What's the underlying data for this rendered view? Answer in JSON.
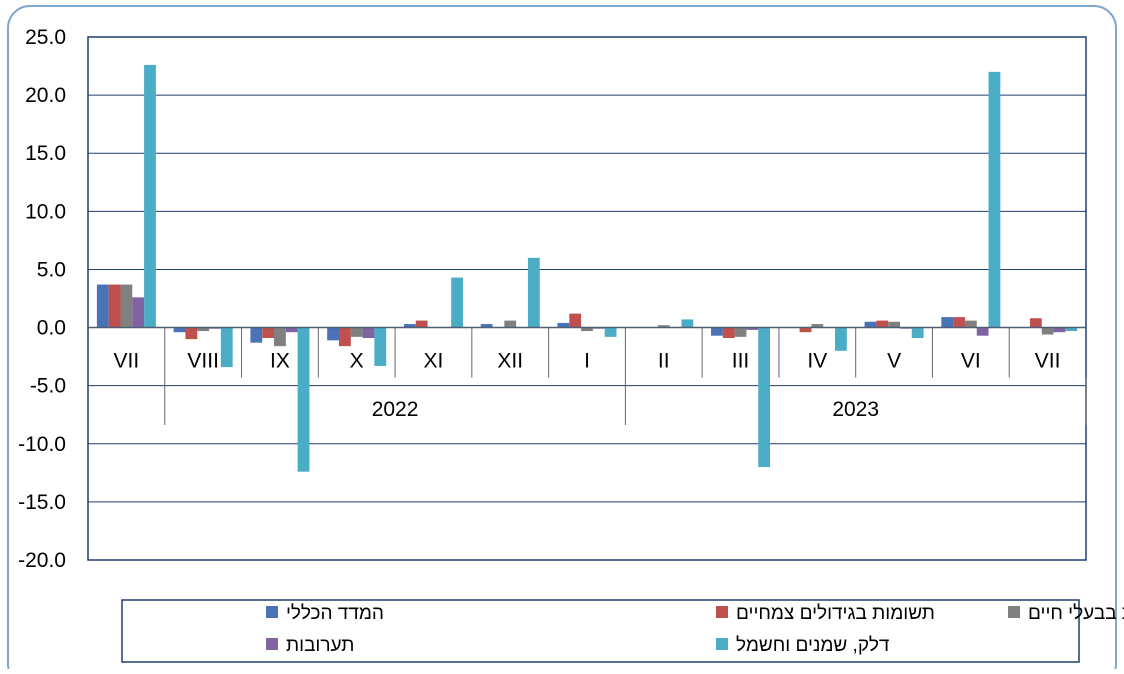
{
  "chart_data": {
    "type": "bar",
    "title": "",
    "xlabel": "",
    "ylabel": "",
    "ylim": [
      -20,
      25
    ],
    "yticks": [
      25,
      20,
      15,
      10,
      5,
      0,
      -5,
      -10,
      -15,
      -20
    ],
    "ytick_labels": [
      "25.0",
      "20.0",
      "15.0",
      "10.0",
      "5.0",
      "0.0",
      "-5.0",
      "-10.0",
      "-15.0",
      "-20.0"
    ],
    "categories": [
      "VII",
      "VIII",
      "IX",
      "X",
      "XI",
      "XII",
      "I",
      "II",
      "III",
      "IV",
      "V",
      "VI",
      "VII"
    ],
    "year_groups": [
      {
        "label": "2022",
        "start": 1,
        "end": 6
      },
      {
        "label": "2023",
        "start": 7,
        "end": 12
      }
    ],
    "grid": true,
    "legend_placement": "bottom",
    "series": [
      {
        "name": "המדד הכללי",
        "color": "#4a72b8",
        "values": [
          3.7,
          -0.4,
          -1.3,
          -1.1,
          0.3,
          0.3,
          0.4,
          0.0,
          -0.7,
          0.0,
          0.5,
          0.9,
          0.0
        ]
      },
      {
        "name": "תשומות בגידולים צמחיים",
        "color": "#c0504d",
        "values": [
          3.7,
          -1.0,
          -0.9,
          -1.6,
          0.6,
          0.0,
          1.2,
          0.0,
          -0.9,
          -0.4,
          0.6,
          0.9,
          0.8
        ]
      },
      {
        "name": "תשומות בבעלי חיים",
        "color": "#808080",
        "values": [
          3.7,
          -0.3,
          -1.6,
          -0.8,
          0.0,
          0.6,
          -0.3,
          0.2,
          -0.8,
          0.3,
          0.5,
          0.6,
          -0.6
        ]
      },
      {
        "name": "תערובות",
        "color": "#8064a2",
        "values": [
          2.6,
          -0.1,
          -0.4,
          -0.9,
          0.0,
          0.0,
          -0.1,
          0.0,
          -0.2,
          0.0,
          -0.1,
          -0.7,
          -0.4
        ]
      },
      {
        "name": "דלק, שמנים וחשמל",
        "color": "#4bacc6",
        "values": [
          22.6,
          -3.4,
          -12.4,
          -3.3,
          4.3,
          6.0,
          -0.8,
          0.7,
          -12.0,
          -2.0,
          -0.9,
          22.0,
          -0.3
        ]
      }
    ]
  }
}
